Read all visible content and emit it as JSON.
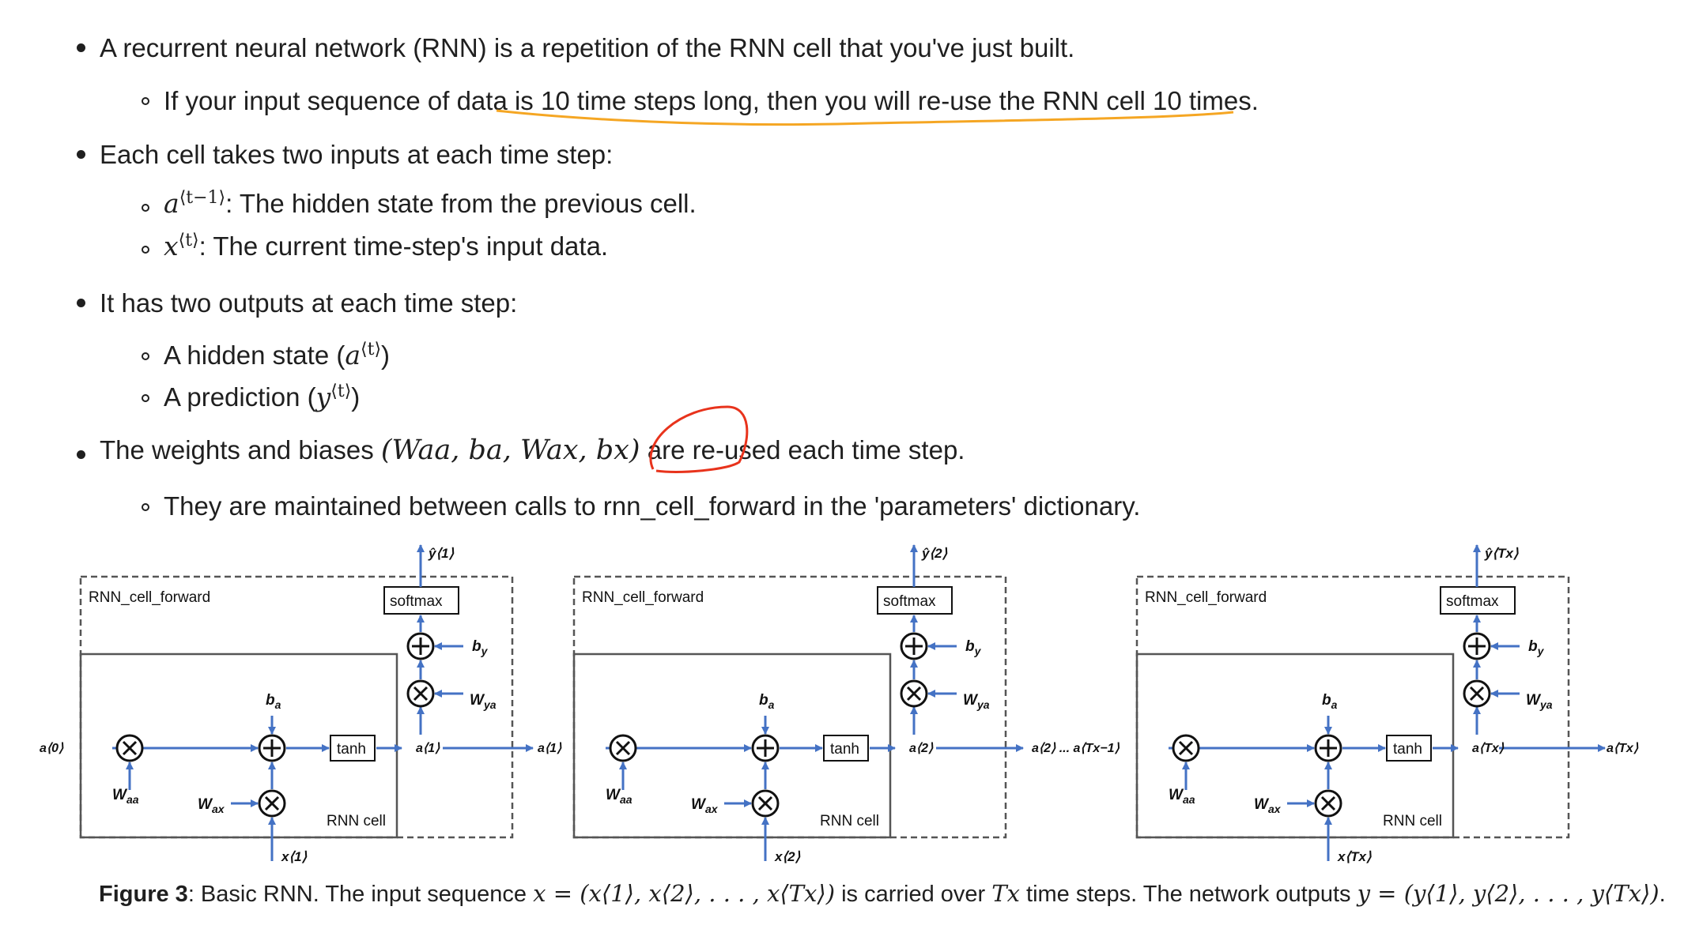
{
  "bullets": {
    "b1": "A recurrent neural network (RNN) is a repetition of the RNN cell that you've just built.",
    "b1_sub1": "If your input sequence of data is 10 time steps long, then you will re-use the RNN cell 10 times.",
    "b2": "Each cell takes two inputs at each time step:",
    "b2_sub1_sym": "a",
    "b2_sub1_sup": "⟨t−1⟩",
    "b2_sub1_text": ": The hidden state from the previous cell.",
    "b2_sub2_sym": "x",
    "b2_sub2_sup": "⟨t⟩",
    "b2_sub2_text": ": The current time-step's input data.",
    "b3": "It has two outputs at each time step:",
    "b3_sub1_pre": "A hidden state (",
    "b3_sub1_sym": "a",
    "b3_sub1_sup": "⟨t⟩",
    "b3_sub1_post": ")",
    "b3_sub2_pre": "A prediction (",
    "b3_sub2_sym": "y",
    "b3_sub2_sup": "⟨t⟩",
    "b3_sub2_post": ")",
    "b4_pre": "The weights and biases ",
    "b4_math": "(Waa, ba, Wax, bx)",
    "b4_mid": " are ",
    "b4_reused": "re-used",
    "b4_post": " each time step.",
    "b4_sub1": "They are maintained between calls to rnn_cell_forward in the 'parameters' dictionary."
  },
  "diagram": {
    "cell_labels": {
      "outer": "RNN_cell_forward",
      "inner": "RNN cell",
      "softmax": "softmax",
      "tanh": "tanh"
    },
    "symbols": {
      "b_a": "b",
      "b_a_sub": "a",
      "b_y": "b",
      "b_y_sub": "y",
      "w_aa": "W",
      "w_aa_sub": "aa",
      "w_ax": "W",
      "w_ax_sub": "ax",
      "w_ya": "W",
      "w_ya_sub": "ya"
    },
    "cells": [
      {
        "a_in": "a⟨0⟩",
        "a_out": "a⟨1⟩",
        "x": "x⟨1⟩",
        "y": "ŷ⟨1⟩"
      },
      {
        "a_in": "a⟨1⟩",
        "a_out": "a⟨2⟩",
        "x": "x⟨2⟩",
        "y": "ŷ⟨2⟩"
      },
      {
        "a_in": "a⟨2⟩ ... a⟨Tx−1⟩",
        "a_out": "a⟨Tx⟩",
        "x": "x⟨Tx⟩",
        "y": "ŷ⟨Tx⟩"
      }
    ],
    "final_out": "a⟨Tx⟩"
  },
  "caption": {
    "label": "Figure 3",
    "text_a": ": Basic RNN. The input sequence ",
    "math_x": "x = (x⟨1⟩, x⟨2⟩, . . . , x⟨Tx⟩)",
    "text_b": " is carried over ",
    "math_tx": "Tx",
    "text_c": " time steps. The network outputs ",
    "math_y": "y = (y⟨1⟩, y⟨2⟩, . . . , y⟨Tx⟩)",
    "text_d": "."
  },
  "colors": {
    "arrow": "#4472c4",
    "annotation_orange": "#f5a623",
    "annotation_red": "#e8331c"
  }
}
